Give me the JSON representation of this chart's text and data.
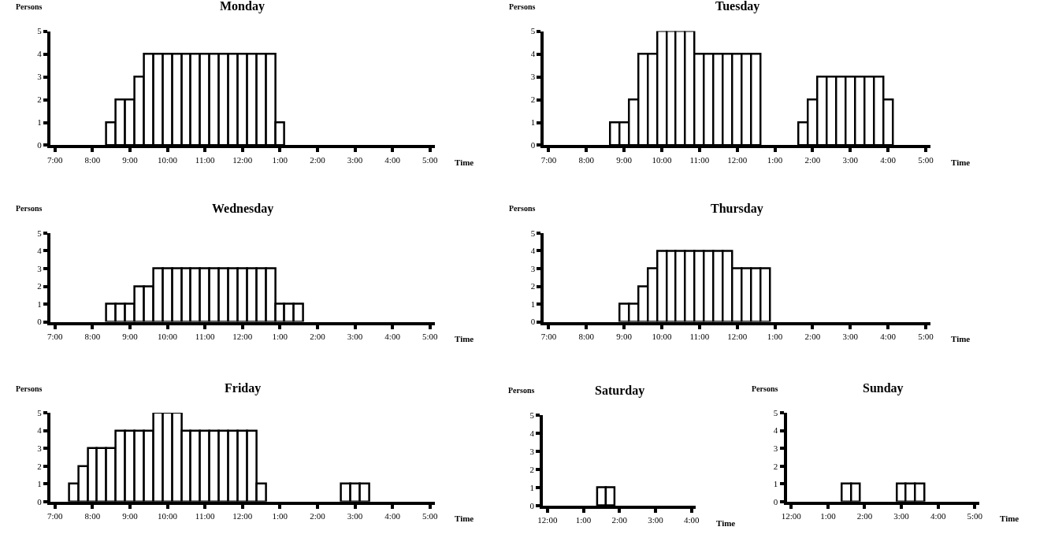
{
  "chart_data": [
    {
      "type": "bar",
      "title": "Monday",
      "xlabel": "Time",
      "ylabel": "Persons",
      "color": "#ffffff",
      "ylim": [
        0,
        5
      ],
      "yticks": [
        0,
        1,
        2,
        3,
        4,
        5
      ],
      "categories": [
        "7:00",
        null,
        null,
        null,
        "8:00",
        null,
        null,
        null,
        "9:00",
        null,
        null,
        null,
        "10:00",
        null,
        null,
        null,
        "11:00",
        null,
        null,
        null,
        "12:00",
        null,
        null,
        null,
        "1:00",
        null,
        null,
        null,
        "2:00",
        null,
        null,
        null,
        "3:00",
        null,
        null,
        null,
        "4:00",
        null,
        null,
        null,
        "5:00"
      ],
      "values": [
        null,
        null,
        null,
        null,
        null,
        null,
        1,
        2,
        2,
        3,
        4,
        4,
        4,
        4,
        4,
        4,
        4,
        4,
        4,
        4,
        4,
        4,
        4,
        4,
        1,
        null,
        null,
        null,
        null,
        null,
        null,
        null,
        null,
        null,
        null,
        null,
        null,
        null,
        null,
        null,
        null
      ]
    },
    {
      "type": "bar",
      "title": "Tuesday",
      "xlabel": "Time",
      "ylabel": "Persons",
      "color": "#ffffff",
      "ylim": [
        0,
        5
      ],
      "yticks": [
        0,
        1,
        2,
        3,
        4,
        5
      ],
      "categories": [
        "7:00",
        null,
        null,
        null,
        "8:00",
        null,
        null,
        null,
        "9:00",
        null,
        null,
        null,
        "10:00",
        null,
        null,
        null,
        "11:00",
        null,
        null,
        null,
        "12:00",
        null,
        null,
        null,
        "1:00",
        null,
        null,
        null,
        "2:00",
        null,
        null,
        null,
        "3:00",
        null,
        null,
        null,
        "4:00",
        null,
        null,
        null,
        "5:00"
      ],
      "values": [
        null,
        null,
        null,
        null,
        null,
        null,
        null,
        1,
        1,
        2,
        4,
        4,
        5,
        5,
        5,
        5,
        4,
        4,
        4,
        4,
        4,
        4,
        4,
        null,
        null,
        null,
        null,
        1,
        2,
        3,
        3,
        3,
        3,
        3,
        3,
        3,
        2,
        null,
        null,
        null,
        null
      ]
    },
    {
      "type": "bar",
      "title": "Wednesday",
      "xlabel": "Time",
      "ylabel": "Persons",
      "color": "#ffffff",
      "ylim": [
        0,
        5
      ],
      "yticks": [
        0,
        1,
        2,
        3,
        4,
        5
      ],
      "categories": [
        "7:00",
        null,
        null,
        null,
        "8:00",
        null,
        null,
        null,
        "9:00",
        null,
        null,
        null,
        "10:00",
        null,
        null,
        null,
        "11:00",
        null,
        null,
        null,
        "12:00",
        null,
        null,
        null,
        "1:00",
        null,
        null,
        null,
        "2:00",
        null,
        null,
        null,
        "3:00",
        null,
        null,
        null,
        "4:00",
        null,
        null,
        null,
        "5:00"
      ],
      "values": [
        null,
        null,
        null,
        null,
        null,
        null,
        1,
        1,
        1,
        2,
        2,
        3,
        3,
        3,
        3,
        3,
        3,
        3,
        3,
        3,
        3,
        3,
        3,
        3,
        1,
        1,
        1,
        null,
        null,
        null,
        null,
        null,
        null,
        null,
        null,
        null,
        null,
        null,
        null,
        null,
        null
      ]
    },
    {
      "type": "bar",
      "title": "Thursday",
      "xlabel": "Time",
      "ylabel": "Persons",
      "color": "#ffffff",
      "ylim": [
        0,
        5
      ],
      "yticks": [
        0,
        1,
        2,
        3,
        4,
        5
      ],
      "categories": [
        "7:00",
        null,
        null,
        null,
        "8:00",
        null,
        null,
        null,
        "9:00",
        null,
        null,
        null,
        "10:00",
        null,
        null,
        null,
        "11:00",
        null,
        null,
        null,
        "12:00",
        null,
        null,
        null,
        "1:00",
        null,
        null,
        null,
        "2:00",
        null,
        null,
        null,
        "3:00",
        null,
        null,
        null,
        "4:00",
        null,
        null,
        null,
        "5:00"
      ],
      "values": [
        null,
        null,
        null,
        null,
        null,
        null,
        null,
        null,
        1,
        1,
        2,
        3,
        4,
        4,
        4,
        4,
        4,
        4,
        4,
        4,
        3,
        3,
        3,
        3,
        null,
        null,
        null,
        null,
        null,
        null,
        null,
        null,
        null,
        null,
        null,
        null,
        null,
        null,
        null,
        null,
        null
      ]
    },
    {
      "type": "bar",
      "title": "Friday",
      "xlabel": "Time",
      "ylabel": "Persons",
      "color": "#ffffff",
      "ylim": [
        0,
        5
      ],
      "yticks": [
        0,
        1,
        2,
        3,
        4,
        5
      ],
      "categories": [
        "7:00",
        null,
        null,
        null,
        "8:00",
        null,
        null,
        null,
        "9:00",
        null,
        null,
        null,
        "10:00",
        null,
        null,
        null,
        "11:00",
        null,
        null,
        null,
        "12:00",
        null,
        null,
        null,
        "1:00",
        null,
        null,
        null,
        "2:00",
        null,
        null,
        null,
        "3:00",
        null,
        null,
        null,
        "4:00",
        null,
        null,
        null,
        "5:00"
      ],
      "values": [
        null,
        null,
        1,
        2,
        3,
        3,
        3,
        4,
        4,
        4,
        4,
        5,
        5,
        5,
        4,
        4,
        4,
        4,
        4,
        4,
        4,
        4,
        1,
        null,
        null,
        null,
        null,
        null,
        null,
        null,
        null,
        1,
        1,
        1,
        null,
        null,
        null,
        null,
        null,
        null,
        null
      ]
    },
    {
      "type": "bar",
      "title": "Saturday",
      "xlabel": "Time",
      "ylabel": "Persons",
      "color": "#ffffff",
      "ylim": [
        0,
        5
      ],
      "yticks": [
        0,
        1,
        2,
        3,
        4,
        5
      ],
      "categories": [
        "12:00",
        null,
        null,
        null,
        "1:00",
        null,
        null,
        null,
        "2:00",
        null,
        null,
        null,
        "3:00",
        null,
        null,
        null,
        "4:00"
      ],
      "values": [
        null,
        null,
        null,
        null,
        null,
        null,
        1,
        1,
        null,
        null,
        null,
        null,
        null,
        null,
        null,
        null,
        null
      ]
    },
    {
      "type": "bar",
      "title": "Sunday",
      "xlabel": "Time",
      "ylabel": "Persons",
      "color": "#ffffff",
      "ylim": [
        0,
        5
      ],
      "yticks": [
        0,
        1,
        2,
        3,
        4,
        5
      ],
      "categories": [
        "12:00",
        null,
        null,
        null,
        "1:00",
        null,
        null,
        null,
        "2:00",
        null,
        null,
        null,
        "3:00",
        null,
        null,
        null,
        "4:00",
        null,
        null,
        null,
        "5:00"
      ],
      "values": [
        null,
        null,
        null,
        null,
        null,
        null,
        1,
        1,
        null,
        null,
        null,
        null,
        1,
        1,
        1,
        null,
        null,
        null,
        null,
        null,
        null
      ]
    }
  ]
}
